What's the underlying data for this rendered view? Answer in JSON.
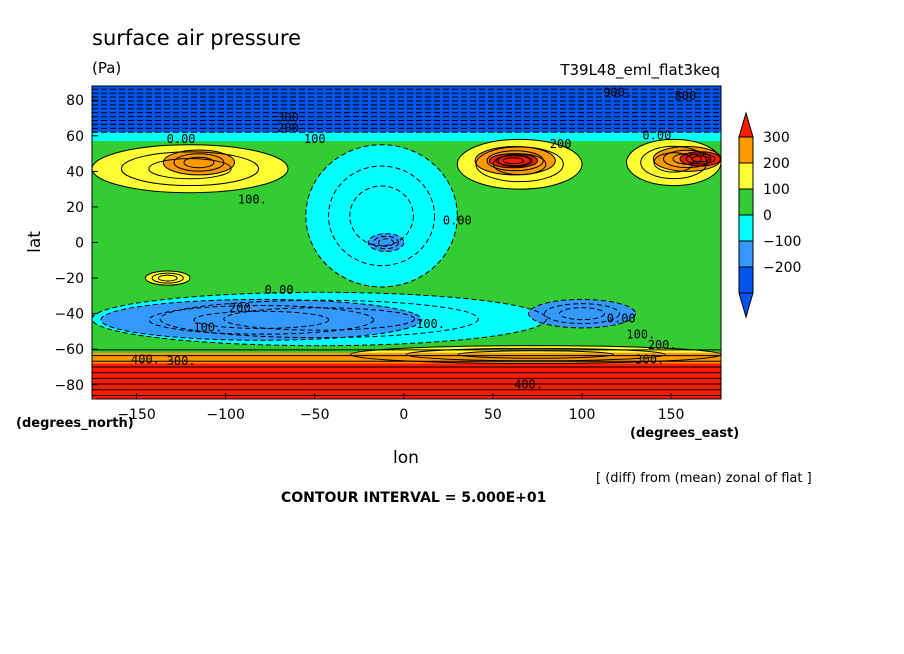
{
  "chart_data": {
    "type": "contour-map",
    "title": "surface air pressure",
    "units": "(Pa)",
    "run_label": "T39L48_eml_flat3keq",
    "xlabel": "lon",
    "ylabel": "lat",
    "x_units": "(degrees_east)",
    "y_units": "(degrees_north)",
    "xlim": [
      -175,
      178
    ],
    "ylim": [
      -88,
      88
    ],
    "x_ticks": [
      -150,
      -100,
      -50,
      0,
      50,
      100,
      150
    ],
    "y_ticks": [
      80,
      60,
      40,
      20,
      0,
      -20,
      -40,
      -60,
      -80
    ],
    "note": "[ (diff) from (mean) zonal of flat ]",
    "contour_interval": "CONTOUR INTERVAL = 5.000E+01",
    "colorbar": {
      "labels": [
        "300",
        "200",
        "100",
        "0",
        "−100",
        "−200"
      ],
      "colors": [
        "#ff3300",
        "#ff9900",
        "#ffff33",
        "#33cc33",
        "#00ffff",
        "#3399ff",
        "#0055ee",
        "#ff1a00"
      ]
    },
    "fields": [
      {
        "level": "−300",
        "color": "#0055ee",
        "lon": [
          -175,
          178
        ],
        "lat": [
          62,
          88
        ]
      },
      {
        "level": "−100",
        "color": "#00ffff",
        "lon": [
          -175,
          178
        ],
        "lat": [
          57,
          62
        ]
      },
      {
        "level": "−100",
        "color": "#00ffff",
        "lon": [
          -55,
          30
        ],
        "lat": [
          -25,
          55
        ]
      },
      {
        "level": "−100",
        "color": "#00ffff",
        "lon": [
          -175,
          80
        ],
        "lat": [
          -58,
          -28
        ]
      },
      {
        "level": "−200",
        "color": "#3399ff",
        "lon": [
          -170,
          10
        ],
        "lat": [
          -55,
          -32
        ]
      },
      {
        "level": "−200",
        "color": "#3399ff",
        "lon": [
          -20,
          0
        ],
        "lat": [
          -5,
          5
        ]
      },
      {
        "level": "−200",
        "color": "#3399ff",
        "lon": [
          70,
          130
        ],
        "lat": [
          -48,
          -32
        ]
      },
      {
        "level": "100",
        "color": "#ffff33",
        "lon": [
          -175,
          -65
        ],
        "lat": [
          28,
          55
        ]
      },
      {
        "level": "100",
        "color": "#ffff33",
        "lon": [
          30,
          100
        ],
        "lat": [
          30,
          58
        ]
      },
      {
        "level": "100",
        "color": "#ffff33",
        "lon": [
          125,
          178
        ],
        "lat": [
          32,
          58
        ]
      },
      {
        "level": "100",
        "color": "#ffff33",
        "lon": [
          -145,
          -120
        ],
        "lat": [
          -24,
          -16
        ]
      },
      {
        "level": "100",
        "color": "#ffff33",
        "lon": [
          -30,
          178
        ],
        "lat": [
          -68,
          -58
        ]
      },
      {
        "level": "200",
        "color": "#ff9900",
        "lon": [
          -135,
          -95
        ],
        "lat": [
          38,
          52
        ]
      },
      {
        "level": "200",
        "color": "#ff9900",
        "lon": [
          40,
          85
        ],
        "lat": [
          38,
          54
        ]
      },
      {
        "level": "200",
        "color": "#ff9900",
        "lon": [
          140,
          178
        ],
        "lat": [
          40,
          54
        ]
      },
      {
        "level": "200",
        "color": "#ff9900",
        "lon": [
          -175,
          178
        ],
        "lat": [
          -72,
          -62
        ]
      },
      {
        "level": "300",
        "color": "#ff1a00",
        "lon": [
          -175,
          178
        ],
        "lat": [
          -88,
          -68
        ]
      },
      {
        "level": "300",
        "color": "#ff1a00",
        "lon": [
          48,
          75
        ],
        "lat": [
          42,
          50
        ]
      },
      {
        "level": "300",
        "color": "#ff1a00",
        "lon": [
          155,
          178
        ],
        "lat": [
          43,
          51
        ]
      }
    ],
    "contour_labels": [
      {
        "text": "900.",
        "lon": 120,
        "lat": 82
      },
      {
        "text": "800",
        "lon": 158,
        "lat": 80
      },
      {
        "text": "300",
        "lon": -65,
        "lat": 68
      },
      {
        "text": "200",
        "lon": -65,
        "lat": 62
      },
      {
        "text": "100",
        "lon": -50,
        "lat": 56
      },
      {
        "text": "0.00",
        "lon": -125,
        "lat": 56
      },
      {
        "text": "0.00",
        "lon": 142,
        "lat": 58
      },
      {
        "text": "100.",
        "lon": -85,
        "lat": 22
      },
      {
        "text": "0.00",
        "lon": 30,
        "lat": 10
      },
      {
        "text": "0.00",
        "lon": -70,
        "lat": -29
      },
      {
        "text": "200.",
        "lon": -90,
        "lat": -39
      },
      {
        "text": "100.",
        "lon": -110,
        "lat": -50
      },
      {
        "text": "100.",
        "lon": 15,
        "lat": -48
      },
      {
        "text": "0.00",
        "lon": 122,
        "lat": -45
      },
      {
        "text": "100.",
        "lon": 133,
        "lat": -54
      },
      {
        "text": "200.",
        "lon": 145,
        "lat": -60
      },
      {
        "text": "300.",
        "lon": 138,
        "lat": -68
      },
      {
        "text": "400.",
        "lon": 70,
        "lat": -82
      },
      {
        "text": "400.",
        "lon": -145,
        "lat": -68
      },
      {
        "text": "300.",
        "lon": -125,
        "lat": -69
      },
      {
        "text": "200",
        "lon": 88,
        "lat": 53
      }
    ]
  }
}
